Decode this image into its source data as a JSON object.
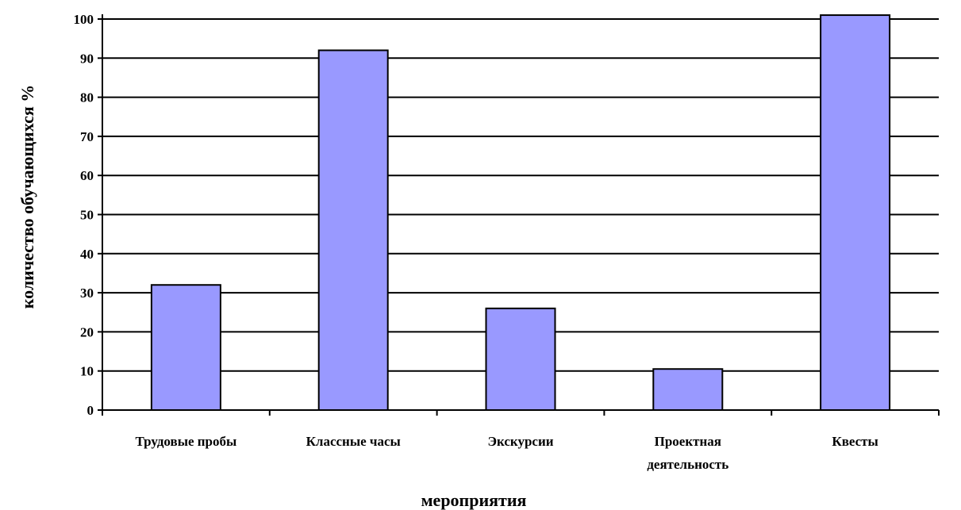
{
  "chart_data": {
    "type": "bar",
    "title": "",
    "xlabel": "мероприятия",
    "ylabel": "количество обучающихся %",
    "ylim": [
      0,
      100
    ],
    "yticks": [
      0,
      10,
      20,
      30,
      40,
      50,
      60,
      70,
      80,
      90,
      100
    ],
    "grid": true,
    "categories": [
      [
        "Трудовые пробы"
      ],
      [
        "Классные часы"
      ],
      [
        "Экскурсии"
      ],
      [
        "Проектная",
        "деятельность"
      ],
      [
        "Квесты"
      ]
    ],
    "values": [
      32,
      92,
      26,
      10.5,
      101
    ],
    "bar_color": "#9999ff",
    "bar_edge_color": "#000000"
  }
}
